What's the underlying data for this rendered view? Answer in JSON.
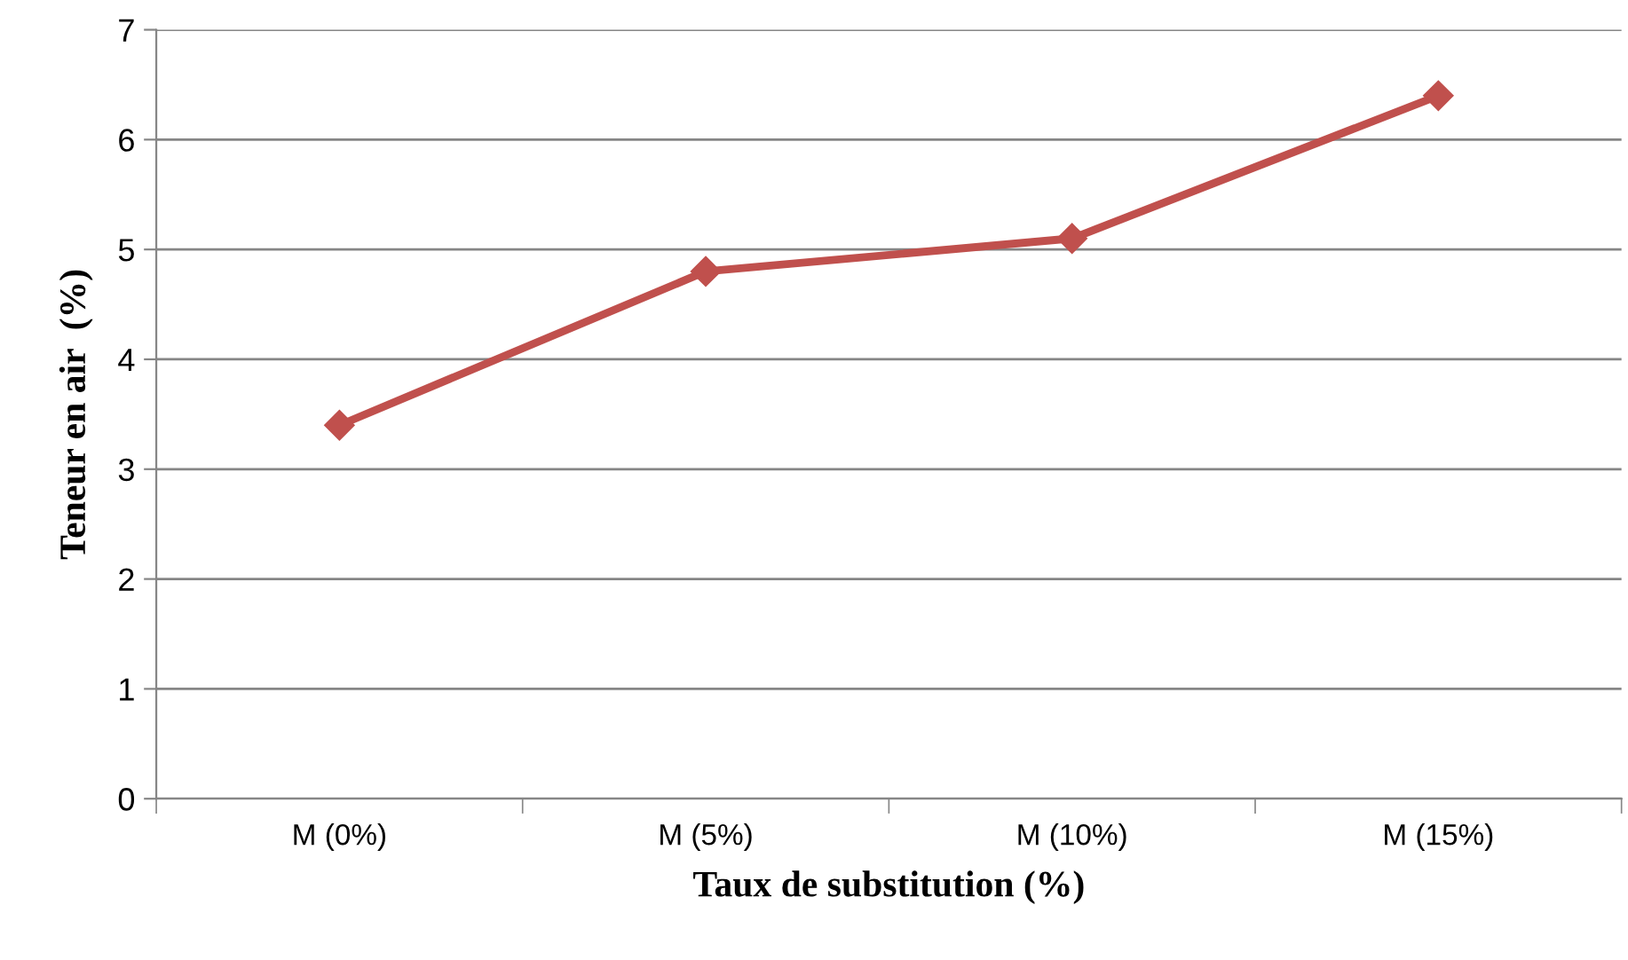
{
  "chart_data": {
    "type": "line",
    "xlabel": "Taux de substitution (%)",
    "ylabel": "Teneur en air  (%)",
    "categories": [
      "M (0%)",
      "M (5%)",
      "M (10%)",
      "M (15%)"
    ],
    "series": [
      {
        "color": "#c0504d",
        "values": [
          3.4,
          4.8,
          5.1,
          6.4
        ]
      }
    ],
    "ylim": [
      0,
      7
    ],
    "yticks": [
      0,
      1,
      2,
      3,
      4,
      5,
      6,
      7
    ],
    "grid": "y",
    "marker": "diamond",
    "line_style": "solid"
  }
}
